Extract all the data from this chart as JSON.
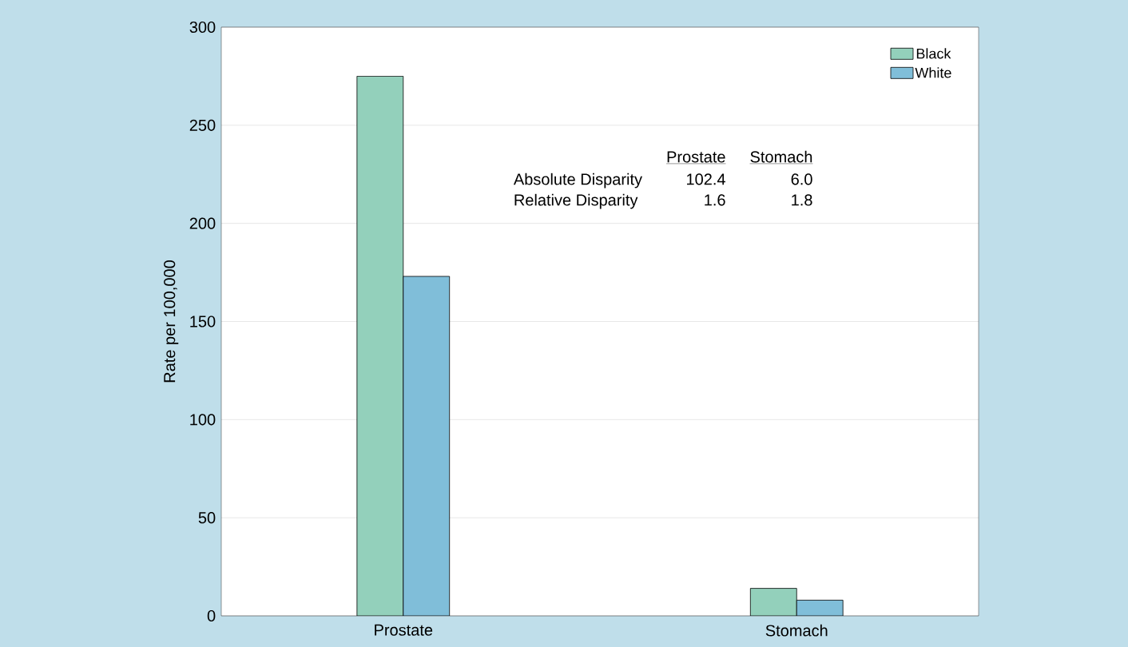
{
  "chart_data": {
    "type": "bar",
    "ylabel": "Rate per 100,000",
    "categories": [
      "Prostate",
      "Stomach"
    ],
    "series": [
      {
        "name": "Black",
        "color": "#93d0bb",
        "values": [
          275,
          14
        ]
      },
      {
        "name": "White",
        "color": "#80bed9",
        "values": [
          173,
          8
        ]
      }
    ],
    "ylim": [
      0,
      300
    ],
    "yticks": [
      0,
      50,
      100,
      150,
      200,
      250,
      300
    ],
    "grid": "y",
    "legend": "top right",
    "annotations": [
      "Prostate",
      "Stomach",
      "Absolute Disparity",
      "102.4",
      "6.0",
      "Relative Disparity",
      "1.6",
      "1.8"
    ]
  }
}
